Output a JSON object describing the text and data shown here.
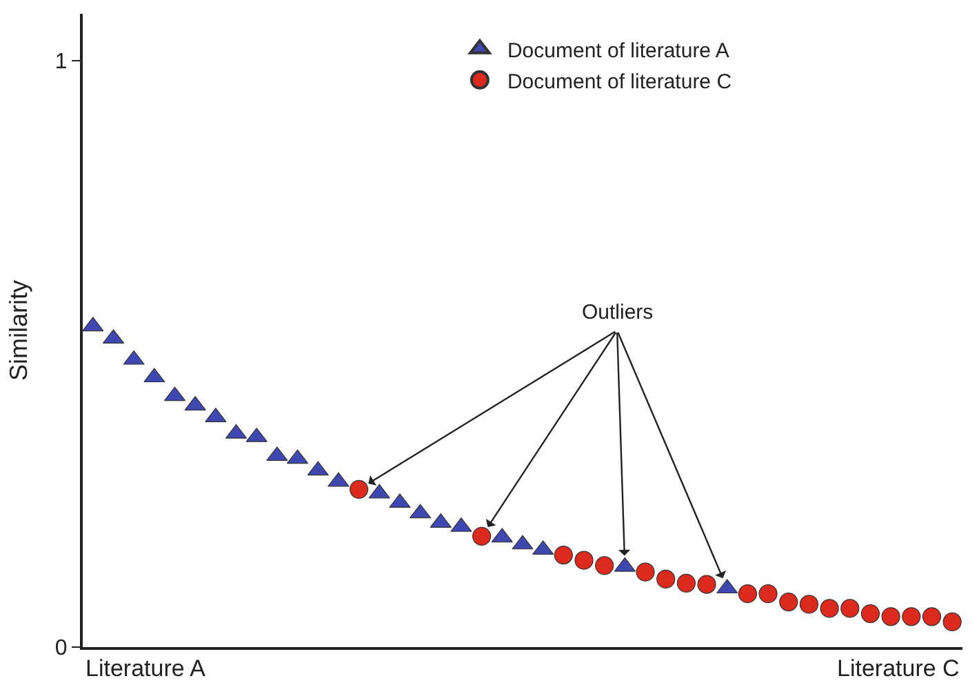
{
  "chart_data": {
    "type": "scatter",
    "ylabel": "Similarity",
    "categories": [
      null,
      null,
      null,
      null,
      null,
      null,
      null,
      null,
      null,
      null,
      null,
      null,
      null,
      null,
      null,
      null,
      null,
      null,
      null,
      null,
      null,
      null,
      null,
      null,
      null,
      null,
      null,
      null,
      null,
      null,
      null,
      null,
      null,
      null,
      null,
      null,
      null,
      null,
      null,
      null,
      null,
      null,
      null
    ],
    "series": [
      {
        "name": "Document of literature A",
        "color": "#3f48b0",
        "marker": "triangle",
        "values": [
          0.547,
          0.526,
          0.49,
          0.46,
          0.428,
          0.412,
          0.392,
          0.364,
          0.358,
          0.326,
          0.321,
          0.301,
          0.282,
          null,
          0.262,
          0.246,
          0.228,
          0.212,
          0.205,
          null,
          0.187,
          0.175,
          0.166,
          null,
          null,
          null,
          0.137,
          null,
          null,
          null,
          null,
          0.1,
          null,
          null,
          null,
          null,
          null,
          null,
          null,
          null,
          null,
          null,
          null
        ]
      },
      {
        "name": "Document of literature C",
        "color": "#dd2a1e",
        "marker": "circle",
        "values": [
          null,
          null,
          null,
          null,
          null,
          null,
          null,
          null,
          null,
          null,
          null,
          null,
          null,
          0.269,
          null,
          null,
          null,
          null,
          null,
          0.189,
          null,
          null,
          null,
          0.157,
          0.148,
          0.139,
          null,
          0.128,
          0.116,
          0.109,
          0.107,
          null,
          0.091,
          0.091,
          0.077,
          0.073,
          0.066,
          0.066,
          0.057,
          0.052,
          0.052,
          0.052,
          0.043
        ]
      }
    ],
    "ylim": [
      0,
      1.08
    ],
    "yticks": [
      0,
      1
    ],
    "legend": "top",
    "annotations": [
      "Outliers",
      "Literature A",
      "Literature C"
    ]
  }
}
